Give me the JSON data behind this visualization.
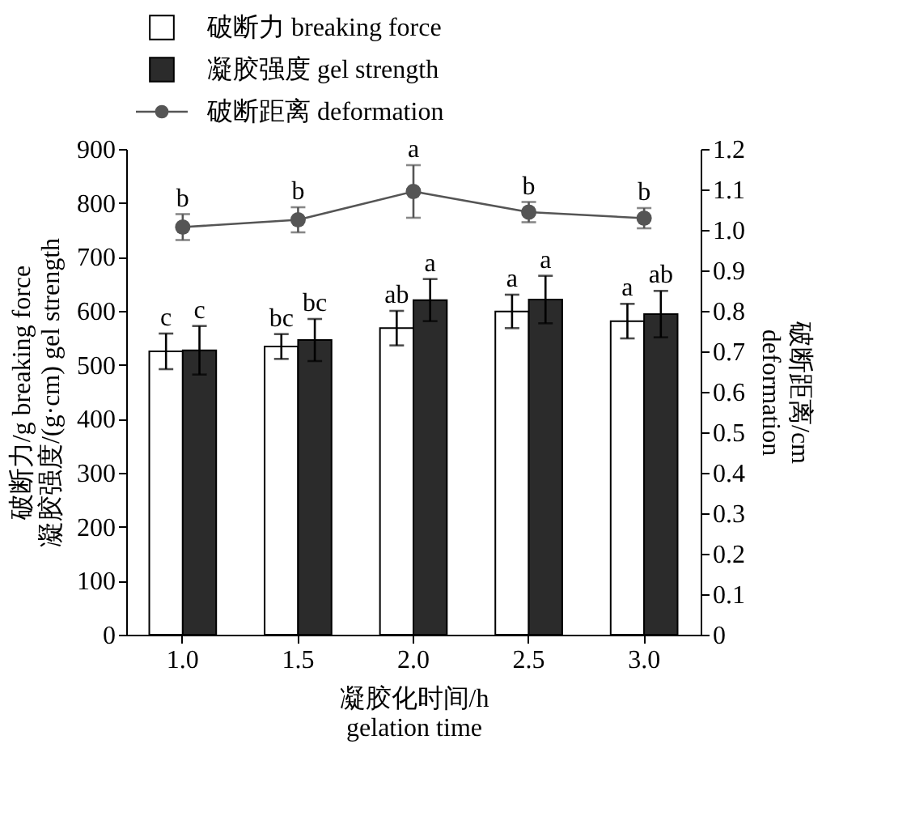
{
  "chart_data": {
    "type": "bar",
    "categories": [
      "1.0",
      "1.5",
      "2.0",
      "2.5",
      "3.0"
    ],
    "xlabel": "凝胶化时间/h\ngelation time",
    "ylabel": "破断力/g    breaking force\n凝胶强度/(g·cm)    gel strength",
    "y2label": "破断距离/cm\ndeformation",
    "series": [
      {
        "name": "破断力    breaking force",
        "color": "#ffffff",
        "values": [
          525,
          534,
          568,
          599,
          581
        ],
        "errors": [
          33,
          23,
          32,
          31,
          32
        ],
        "value_labels": [
          "c",
          "bc",
          "ab",
          "a",
          "a"
        ]
      },
      {
        "name": "凝胶强度    gel strength",
        "color": "#2b2b2b",
        "values": [
          527,
          546,
          620,
          621,
          594
        ],
        "errors": [
          45,
          39,
          39,
          44,
          43
        ],
        "value_labels": [
          "c",
          "bc",
          "a",
          "a",
          "ab"
        ]
      },
      {
        "name": "破断距离    deformation",
        "type": "line",
        "axis": "y2",
        "color": "#555555",
        "values": [
          1.007,
          1.025,
          1.095,
          1.044,
          1.029
        ],
        "errors": [
          0.032,
          0.031,
          0.065,
          0.025,
          0.025
        ],
        "value_labels": [
          "b",
          "b",
          "a",
          "b",
          "b"
        ]
      }
    ],
    "ylim": [
      0,
      900
    ],
    "yticks": [
      0,
      100,
      200,
      300,
      400,
      500,
      600,
      700,
      800,
      900
    ],
    "y2lim": [
      0,
      1.2
    ],
    "y2ticks": [
      {
        "value": 0,
        "label": "0"
      },
      {
        "value": 0.1,
        "label": "0.1"
      },
      {
        "value": 0.2,
        "label": "0.2"
      },
      {
        "value": 0.3,
        "label": "0.3"
      },
      {
        "value": 0.4,
        "label": "0.4"
      },
      {
        "value": 0.5,
        "label": "0.5"
      },
      {
        "value": 0.6,
        "label": "0.6"
      },
      {
        "value": 0.7,
        "label": "0.7"
      },
      {
        "value": 0.8,
        "label": "0.8"
      },
      {
        "value": 0.9,
        "label": "0.9"
      },
      {
        "value": 1.0,
        "label": "1.0"
      },
      {
        "value": 1.1,
        "label": "1.1"
      },
      {
        "value": 1.2,
        "label": "1.2"
      }
    ],
    "marker": "circle",
    "grid": false,
    "legend": "top"
  }
}
